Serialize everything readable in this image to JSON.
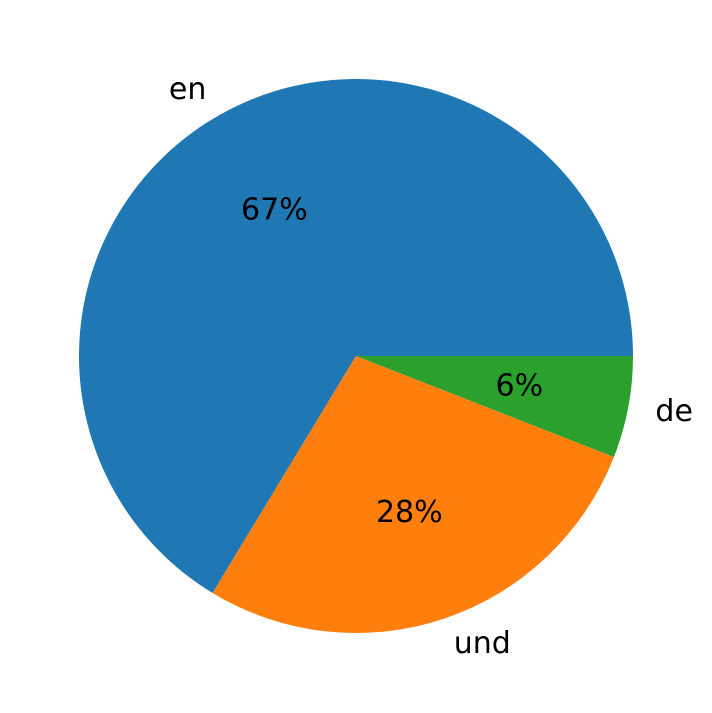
{
  "chart_data": {
    "type": "pie",
    "categories": [
      "en",
      "und",
      "de"
    ],
    "values": [
      67,
      28,
      6
    ],
    "value_labels": [
      "67%",
      "28%",
      "6%"
    ],
    "colors": [
      "#1f77b4",
      "#ff7f0e",
      "#2ca02c"
    ],
    "start_angle": 0,
    "direction": "counterclockwise"
  }
}
